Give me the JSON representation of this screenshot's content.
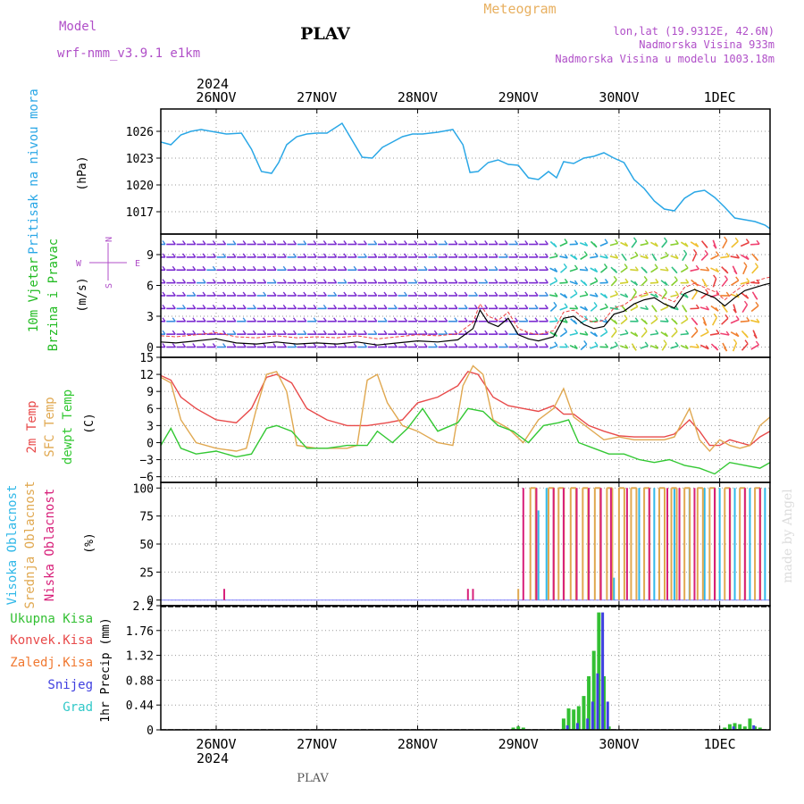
{
  "header": {
    "model_label": "Model",
    "model_name": "wrf-nmm_v3.9.1  e1km",
    "station": "PLAV",
    "product": "Meteogram",
    "lonlat": "lon,lat (19.9312E, 42.6N)",
    "elevation": "Nadmorska Visina 933m",
    "model_elevation": "Nadmorska Visina u modelu 1003.18m",
    "footer_station": "PLAV",
    "watermark": "made by Angel"
  },
  "colors": {
    "model_text": "#b04fc8",
    "product_text": "#e8b060",
    "pressure": "#2aa7e6",
    "wind_speed": "#000000",
    "gust": "#ee4444",
    "temp_2m": "#e84a4a",
    "temp_sfc": "#e0a850",
    "dewpoint": "#33c833",
    "cloud_high": "#30b8e8",
    "cloud_mid": "#e0a850",
    "cloud_low": "#d8207a",
    "precip_total": "#33c033",
    "precip_conv": "#e84a4a",
    "precip_snow": "#4040e0",
    "watermark": "#dcdcdc"
  },
  "time_axis": {
    "year": "2024",
    "labels": [
      "26NOV",
      "27NOV",
      "28NOV",
      "29NOV",
      "30NOV",
      "1DEC"
    ],
    "day_ticks": [
      0,
      1,
      2,
      3,
      4,
      5
    ],
    "start": -0.55,
    "end": 5.5
  },
  "chart_data": [
    {
      "type": "line",
      "panel": "pressure",
      "label_lines": [
        "Pritisak na nivou mora",
        "(hPa)"
      ],
      "ylim": [
        1014.5,
        1028.5
      ],
      "yticks": [
        "1017",
        "1020",
        "1023",
        "1026"
      ],
      "ytick_values": [
        1017,
        1020,
        1023,
        1026
      ],
      "grid": true,
      "x": [
        -0.55,
        -0.45,
        -0.35,
        -0.25,
        -0.15,
        -0.05,
        0.1,
        0.25,
        0.35,
        0.45,
        0.55,
        0.62,
        0.7,
        0.8,
        0.9,
        1.0,
        1.1,
        1.25,
        1.35,
        1.45,
        1.55,
        1.65,
        1.75,
        1.85,
        1.95,
        2.05,
        2.2,
        2.35,
        2.45,
        2.52,
        2.6,
        2.7,
        2.8,
        2.9,
        3.0,
        3.1,
        3.2,
        3.3,
        3.38,
        3.45,
        3.55,
        3.65,
        3.75,
        3.85,
        3.95,
        4.05,
        4.15,
        4.25,
        4.35,
        4.45,
        4.55,
        4.65,
        4.75,
        4.85,
        4.95,
        5.05,
        5.15,
        5.25,
        5.35,
        5.45,
        5.5
      ],
      "y": [
        1024.8,
        1024.5,
        1025.6,
        1026.0,
        1026.2,
        1026.0,
        1025.7,
        1025.8,
        1024.0,
        1021.5,
        1021.3,
        1022.5,
        1024.5,
        1025.4,
        1025.7,
        1025.8,
        1025.8,
        1026.9,
        1025.0,
        1023.1,
        1023.0,
        1024.2,
        1024.8,
        1025.4,
        1025.7,
        1025.7,
        1025.9,
        1026.2,
        1024.5,
        1021.4,
        1021.5,
        1022.5,
        1022.8,
        1022.3,
        1022.2,
        1020.8,
        1020.6,
        1021.5,
        1020.8,
        1022.6,
        1022.4,
        1023.0,
        1023.2,
        1023.6,
        1023.0,
        1022.5,
        1020.6,
        1019.6,
        1018.2,
        1017.3,
        1017.1,
        1018.5,
        1019.2,
        1019.4,
        1018.6,
        1017.5,
        1016.3,
        1016.1,
        1015.9,
        1015.5,
        1015.1
      ]
    },
    {
      "type": "line",
      "panel": "wind",
      "label_lines": [
        "10m Vjetar",
        "Brzina i Pravac",
        "(m/s)"
      ],
      "compass": [
        "N",
        "S",
        "W",
        "E"
      ],
      "ylim": [
        -1,
        11
      ],
      "yticks": [
        "0",
        "3",
        "6",
        "9"
      ],
      "ytick_values": [
        0,
        3,
        6,
        9
      ],
      "grid": true,
      "series": [
        {
          "name": "",
          "x": [
            -0.55,
            -0.4,
            -0.2,
            0.0,
            0.2,
            0.4,
            0.6,
            0.8,
            1.0,
            1.2,
            1.4,
            1.6,
            1.8,
            2.0,
            2.2,
            2.4,
            2.55,
            2.62,
            2.7,
            2.8,
            2.9,
            3.0,
            3.1,
            3.2,
            3.35,
            3.45,
            3.55,
            3.65,
            3.75,
            3.85,
            3.95,
            4.05,
            4.15,
            4.25,
            4.35,
            4.45,
            4.55,
            4.65,
            4.75,
            4.85,
            4.95,
            5.05,
            5.15,
            5.25,
            5.35,
            5.45,
            5.5
          ],
          "y": [
            0.5,
            0.4,
            0.6,
            0.8,
            0.4,
            0.3,
            0.5,
            0.3,
            0.4,
            0.3,
            0.5,
            0.2,
            0.4,
            0.6,
            0.5,
            0.7,
            1.8,
            3.6,
            2.4,
            2.0,
            2.8,
            1.2,
            0.8,
            0.6,
            1.0,
            2.8,
            3.0,
            2.2,
            1.8,
            2.0,
            3.2,
            3.5,
            4.2,
            4.6,
            4.8,
            4.2,
            3.8,
            5.2,
            5.6,
            5.2,
            4.8,
            4.0,
            4.8,
            5.5,
            5.8,
            6.1,
            6.2
          ]
        }
      ]
    },
    {
      "type": "line",
      "panel": "temperature",
      "label_lines": [
        "2m Temp",
        "SFC Temp",
        "dewpt Temp",
        "(C)"
      ],
      "ylim": [
        -7,
        15
      ],
      "yticks": [
        "−6",
        "−3",
        "0",
        "3",
        "6",
        "9",
        "12",
        "15"
      ],
      "ytick_values": [
        -6,
        -3,
        0,
        3,
        6,
        9,
        12,
        15
      ],
      "grid": true,
      "series": [
        {
          "name": "2m Temp",
          "x": [
            -0.55,
            -0.45,
            -0.35,
            -0.2,
            0.0,
            0.2,
            0.35,
            0.5,
            0.6,
            0.75,
            0.9,
            1.1,
            1.3,
            1.5,
            1.7,
            1.85,
            2.0,
            2.2,
            2.4,
            2.5,
            2.6,
            2.75,
            2.9,
            3.05,
            3.2,
            3.35,
            3.45,
            3.55,
            3.7,
            3.85,
            4.0,
            4.15,
            4.3,
            4.45,
            4.55,
            4.7,
            4.8,
            4.9,
            5.0,
            5.1,
            5.2,
            5.3,
            5.4,
            5.5
          ],
          "y": [
            11.8,
            11.0,
            8.0,
            6.0,
            4.0,
            3.5,
            6.0,
            11.5,
            12.0,
            10.5,
            6.0,
            4.0,
            3.0,
            3.0,
            3.5,
            4.0,
            7.0,
            8.0,
            10.0,
            12.5,
            12.0,
            8.0,
            6.5,
            6.0,
            5.5,
            6.5,
            5.0,
            5.0,
            3.0,
            2.0,
            1.2,
            1.0,
            1.0,
            1.0,
            1.5,
            4.0,
            2.0,
            -0.5,
            -0.5,
            0.5,
            0.0,
            -0.5,
            1.0,
            2.0
          ]
        },
        {
          "name": "SFC Temp",
          "x": [
            -0.55,
            -0.45,
            -0.35,
            -0.2,
            0.0,
            0.2,
            0.3,
            0.4,
            0.5,
            0.6,
            0.7,
            0.8,
            1.0,
            1.2,
            1.3,
            1.4,
            1.5,
            1.6,
            1.7,
            1.85,
            2.0,
            2.2,
            2.35,
            2.45,
            2.55,
            2.65,
            2.75,
            2.9,
            3.05,
            3.2,
            3.35,
            3.45,
            3.55,
            3.7,
            3.85,
            4.0,
            4.15,
            4.3,
            4.45,
            4.55,
            4.7,
            4.8,
            4.9,
            5.0,
            5.1,
            5.2,
            5.3,
            5.4,
            5.5
          ],
          "y": [
            11.5,
            10.5,
            4.0,
            0.0,
            -1.0,
            -1.5,
            -1.0,
            6.0,
            12.0,
            12.5,
            9.0,
            -0.5,
            -1.0,
            -1.0,
            -1.0,
            -0.5,
            11.0,
            12.0,
            7.0,
            3.0,
            2.0,
            0.0,
            -0.5,
            10.0,
            13.5,
            12.0,
            4.0,
            2.5,
            0.0,
            4.0,
            6.0,
            9.5,
            4.5,
            2.5,
            0.5,
            1.0,
            0.5,
            0.5,
            0.5,
            1.0,
            6.0,
            0.5,
            -1.5,
            0.5,
            -0.5,
            -1.0,
            -0.5,
            3.0,
            4.5
          ]
        },
        {
          "name": "dewpt Temp",
          "x": [
            -0.55,
            -0.45,
            -0.35,
            -0.2,
            0.0,
            0.2,
            0.35,
            0.5,
            0.6,
            0.75,
            0.9,
            1.1,
            1.3,
            1.5,
            1.6,
            1.75,
            1.9,
            2.05,
            2.2,
            2.4,
            2.5,
            2.65,
            2.8,
            2.95,
            3.1,
            3.25,
            3.4,
            3.5,
            3.6,
            3.75,
            3.9,
            4.05,
            4.2,
            4.35,
            4.5,
            4.65,
            4.8,
            4.95,
            5.1,
            5.25,
            5.4,
            5.5
          ],
          "y": [
            -0.5,
            2.5,
            -1.0,
            -2.0,
            -1.5,
            -2.5,
            -2.0,
            2.5,
            3.0,
            2.0,
            -1.0,
            -1.0,
            -0.5,
            -0.5,
            2.0,
            0.0,
            2.5,
            6.0,
            2.0,
            3.5,
            6.0,
            5.5,
            3.0,
            2.0,
            0.0,
            3.0,
            3.5,
            4.0,
            0.0,
            -1.0,
            -2.0,
            -2.0,
            -3.0,
            -3.5,
            -3.0,
            -4.0,
            -4.5,
            -5.5,
            -3.5,
            -4.0,
            -4.5,
            -3.5
          ]
        }
      ]
    },
    {
      "type": "bar",
      "panel": "clouds",
      "label_lines": [
        "Visoka Oblacnost",
        "Srednja Oblacnost",
        "Niska  Oblacnost",
        "(%)"
      ],
      "ylim": [
        -5,
        105
      ],
      "yticks": [
        "0",
        "25",
        "50",
        "75",
        "100"
      ],
      "ytick_values": [
        0,
        25,
        50,
        75,
        100
      ],
      "grid": true,
      "series": [
        {
          "name": "Visoka Oblacnost",
          "color": "#30b8e8",
          "x": [
            3.2,
            3.28,
            3.95,
            4.2,
            4.35,
            4.55,
            4.7,
            4.85,
            5.0,
            5.15,
            5.3,
            5.45
          ],
          "y": [
            80,
            100,
            20,
            100,
            100,
            100,
            100,
            100,
            100,
            100,
            100,
            100
          ]
        },
        {
          "name": "Srednja Oblacnost",
          "color": "#e0a850",
          "x": [
            3.0,
            3.12,
            3.3,
            3.4,
            3.52,
            3.64,
            3.76,
            3.88,
            4.0,
            4.12,
            4.25,
            4.4,
            4.52,
            4.65,
            4.78,
            4.9,
            5.05,
            5.2,
            5.35,
            5.5
          ],
          "y": [
            10,
            100,
            100,
            100,
            100,
            100,
            100,
            100,
            100,
            100,
            100,
            100,
            100,
            100,
            100,
            100,
            100,
            100,
            100,
            100
          ]
        },
        {
          "name": "Niska  Oblacnost",
          "color": "#d8207a",
          "x": [
            0.08,
            2.5,
            2.55,
            3.05,
            3.18,
            3.35,
            3.45,
            3.58,
            3.7,
            3.82,
            3.92,
            4.08,
            4.3,
            4.48,
            4.6,
            4.75,
            4.95,
            5.1,
            5.25,
            5.4
          ],
          "y": [
            10,
            10,
            10,
            100,
            100,
            100,
            100,
            100,
            100,
            100,
            100,
            100,
            100,
            100,
            100,
            100,
            100,
            100,
            100,
            100
          ]
        }
      ]
    },
    {
      "type": "bar",
      "panel": "precip",
      "label_lines": [
        "Ukupna  Kisa",
        "Konvek.Kisa",
        "Zaledj.Kisa",
        "Snijeg",
        "Grad"
      ],
      "label_colors": [
        "#33c033",
        "#e84a4a",
        "#f07830",
        "#4040e0",
        "#30c8c8"
      ],
      "axis_label": "1hr Precip (mm)",
      "ylim": [
        0,
        2.2
      ],
      "yticks": [
        "0",
        "0.44",
        "0.88",
        "1.32",
        "1.76",
        "2.2"
      ],
      "ytick_values": [
        0,
        0.44,
        0.88,
        1.32,
        1.76,
        2.2
      ],
      "grid": true,
      "series": [
        {
          "name": "Ukupna  Kisa",
          "color": "#33c033",
          "x": [
            2.95,
            3.0,
            3.05,
            3.45,
            3.5,
            3.55,
            3.6,
            3.65,
            3.7,
            3.75,
            3.8,
            3.85,
            3.9,
            5.05,
            5.1,
            5.15,
            5.2,
            5.25,
            5.3,
            5.35,
            5.4
          ],
          "y": [
            0.04,
            0.06,
            0.04,
            0.2,
            0.38,
            0.36,
            0.42,
            0.6,
            0.95,
            1.4,
            2.08,
            0.95,
            0.06,
            0.04,
            0.1,
            0.12,
            0.1,
            0.06,
            0.2,
            0.06,
            0.04
          ]
        },
        {
          "name": "Snijeg",
          "color": "#4040e0",
          "x": [
            3.47,
            3.57,
            3.67,
            3.72,
            3.77,
            3.82,
            3.87,
            5.12,
            5.32
          ],
          "y": [
            0.08,
            0.12,
            0.2,
            0.5,
            1.0,
            2.08,
            0.5,
            0.06,
            0.08
          ]
        }
      ]
    }
  ]
}
